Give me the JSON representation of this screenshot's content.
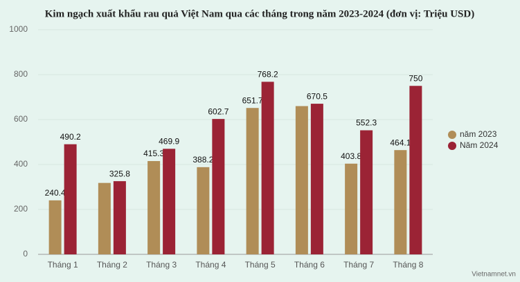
{
  "chart_data": {
    "type": "bar",
    "title": "Kim ngạch xuất khẩu rau quả Việt Nam qua các tháng trong năm 2023-2024 (đơn vị: Triệu USD)",
    "categories": [
      "Tháng 1",
      "Tháng 2",
      "Tháng 3",
      "Tháng 4",
      "Tháng 5",
      "Tháng 6",
      "Tháng 7",
      "Tháng 8"
    ],
    "series": [
      {
        "name": "năm 2023",
        "color": "#b08d57",
        "values": [
          240.4,
          318,
          415.3,
          388.2,
          651.7,
          660,
          403.8,
          464.1
        ],
        "value_labels": [
          "240.4",
          null,
          "415.3",
          "388.2",
          "651.7",
          null,
          "403.8",
          "464.1"
        ]
      },
      {
        "name": "Năm 2024",
        "color": "#9b2335",
        "values": [
          490.2,
          325.8,
          469.9,
          602.7,
          768.2,
          670.5,
          552.3,
          750
        ]
      }
    ],
    "ylim": [
      0,
      1000
    ],
    "yticks": [
      0,
      200,
      400,
      600,
      800,
      1000
    ],
    "grid": true,
    "legend": "right",
    "source": "Vietnamnet.vn"
  }
}
